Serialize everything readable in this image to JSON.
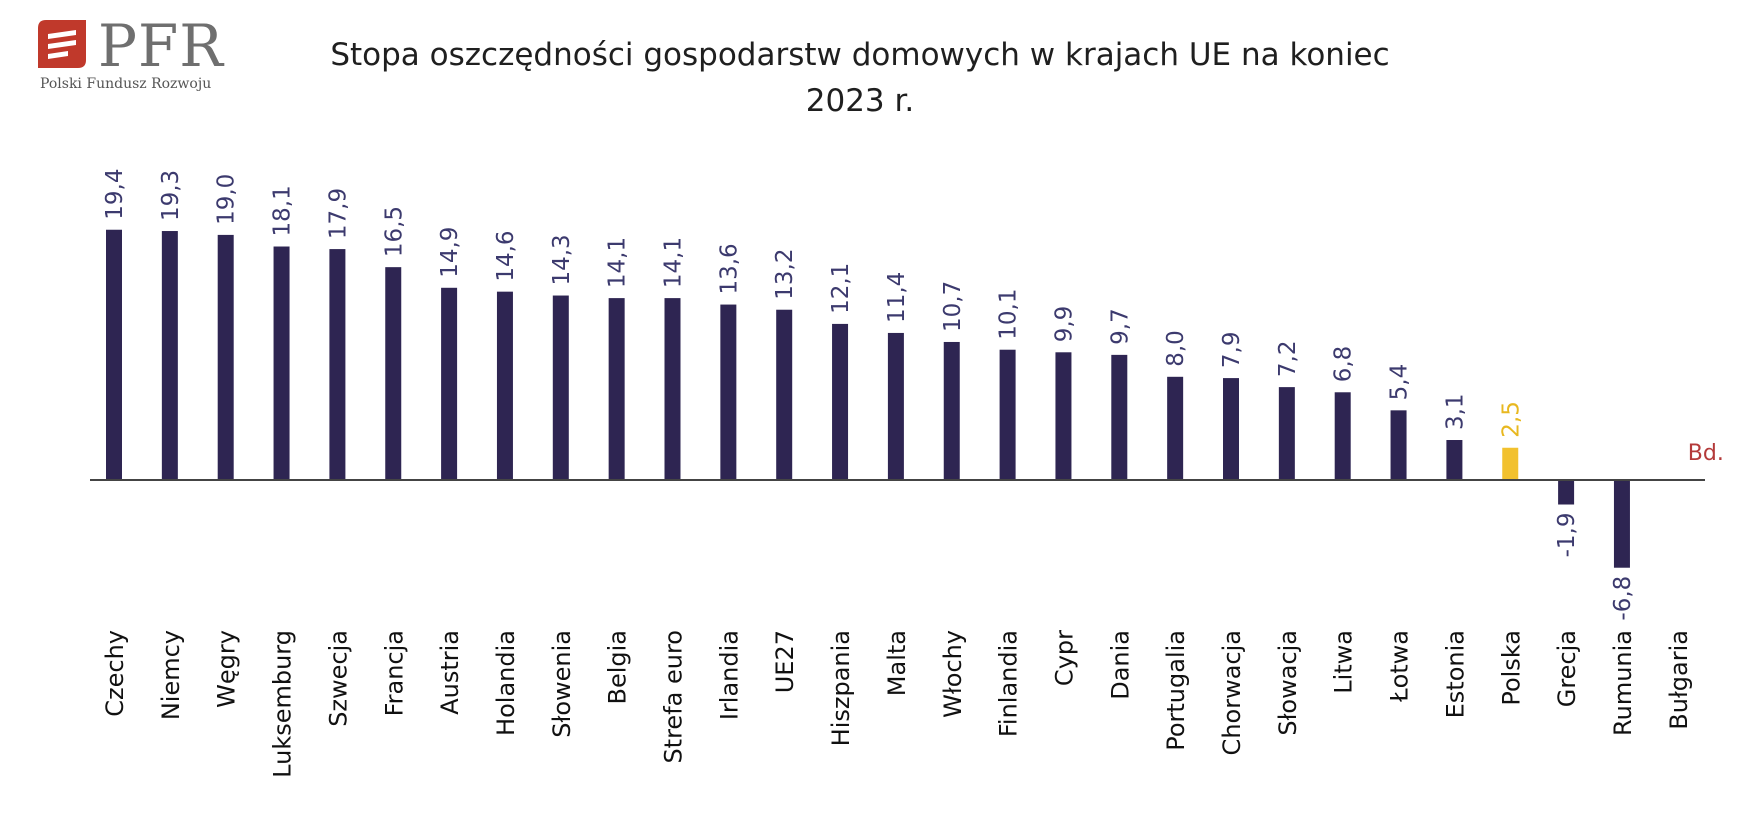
{
  "logo": {
    "text": "PFR",
    "subtitle": "Polski Fundusz Rozwoju"
  },
  "title_line1": "Stopa oszczędności gospodarstw domowych w krajach UE na koniec",
  "title_line2": "2023 r.",
  "colors": {
    "bar": "#2e2552",
    "highlight_bar": "#f2c12e",
    "highlight_label": "#e8b820",
    "missing_label": "#b43a3a",
    "axis": "#444444",
    "label": "#3c3a6e",
    "logo_red": "#c0392b"
  },
  "chart_data": {
    "type": "bar",
    "title": "Stopa oszczędności gospodarstw domowych w krajach UE na koniec 2023 r.",
    "xlabel": "",
    "ylabel": "",
    "categories": [
      "Czechy",
      "Niemcy",
      "Węgry",
      "Luksemburg",
      "Szwecja",
      "Francja",
      "Austria",
      "Holandia",
      "Słowenia",
      "Belgia",
      "Strefa euro",
      "Irlandia",
      "UE27",
      "Hiszpania",
      "Malta",
      "Włochy",
      "Finlandia",
      "Cypr",
      "Dania",
      "Portugalia",
      "Chorwacja",
      "Słowacja",
      "Litwa",
      "Łotwa",
      "Estonia",
      "Polska",
      "Grecja",
      "Rumunia",
      "Bułgaria"
    ],
    "values": [
      19.4,
      19.3,
      19.0,
      18.1,
      17.9,
      16.5,
      14.9,
      14.6,
      14.3,
      14.1,
      14.1,
      13.6,
      13.2,
      12.1,
      11.4,
      10.7,
      10.1,
      9.9,
      9.7,
      8.0,
      7.9,
      7.2,
      6.8,
      5.4,
      3.1,
      2.5,
      -1.9,
      -6.8,
      null
    ],
    "value_labels": [
      "19,4",
      "19,3",
      "19,0",
      "18,1",
      "17,9",
      "16,5",
      "14,9",
      "14,6",
      "14,3",
      "14,1",
      "14,1",
      "13,6",
      "13,2",
      "12,1",
      "11,4",
      "10,7",
      "10,1",
      "9,9",
      "9,7",
      "8,0",
      "7,9",
      "7,2",
      "6,8",
      "5,4",
      "3,1",
      "2,5",
      "-1,9",
      "-6,8",
      "Bd."
    ],
    "highlight": "Polska",
    "missing_label": "Bd.",
    "ylim": [
      -6.8,
      19.4
    ],
    "grid": false,
    "legend": "none"
  }
}
